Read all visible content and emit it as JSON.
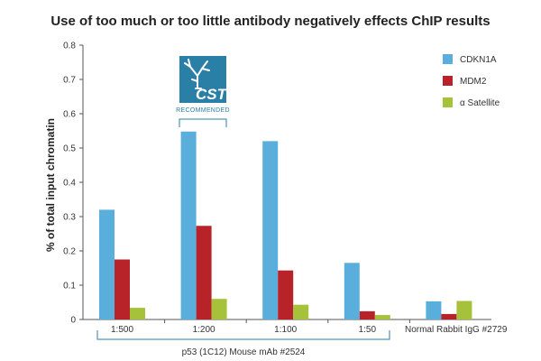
{
  "chart_data": {
    "type": "bar",
    "title": "Use of too much or too little antibody negatively effects ChIP results",
    "ylabel": "% of total input chromatin",
    "xlabel": "",
    "ylim": [
      0,
      0.8
    ],
    "yticks": [
      0,
      0.1,
      0.2,
      0.3,
      0.4,
      0.5,
      0.6,
      0.7,
      0.8
    ],
    "ytick_labels": [
      "0",
      "0.1",
      "0.2",
      "0.3",
      "0.4",
      "0.5",
      "0.6",
      "0.7",
      "0.8"
    ],
    "categories": [
      "1:500",
      "1:200",
      "1:100",
      "1:50",
      "Normal Rabbit IgG #2729"
    ],
    "series": [
      {
        "name": "CDKN1A",
        "color": "#5aaedc",
        "values": [
          0.32,
          0.548,
          0.52,
          0.165,
          0.053
        ]
      },
      {
        "name": "MDM2",
        "color": "#b8232a",
        "values": [
          0.175,
          0.273,
          0.143,
          0.024,
          0.016
        ]
      },
      {
        "name": "α Satellite",
        "color": "#a5c23a",
        "values": [
          0.034,
          0.06,
          0.043,
          0.013,
          0.054
        ]
      }
    ],
    "group_label": "p53 (1C12) Mouse mAb #2524",
    "legend_position": "top-right",
    "grid": false
  },
  "badge": {
    "text": "CST",
    "subtext": "RECOMMENDED",
    "color": "#2a7fa6",
    "icon": "tree-icon"
  }
}
